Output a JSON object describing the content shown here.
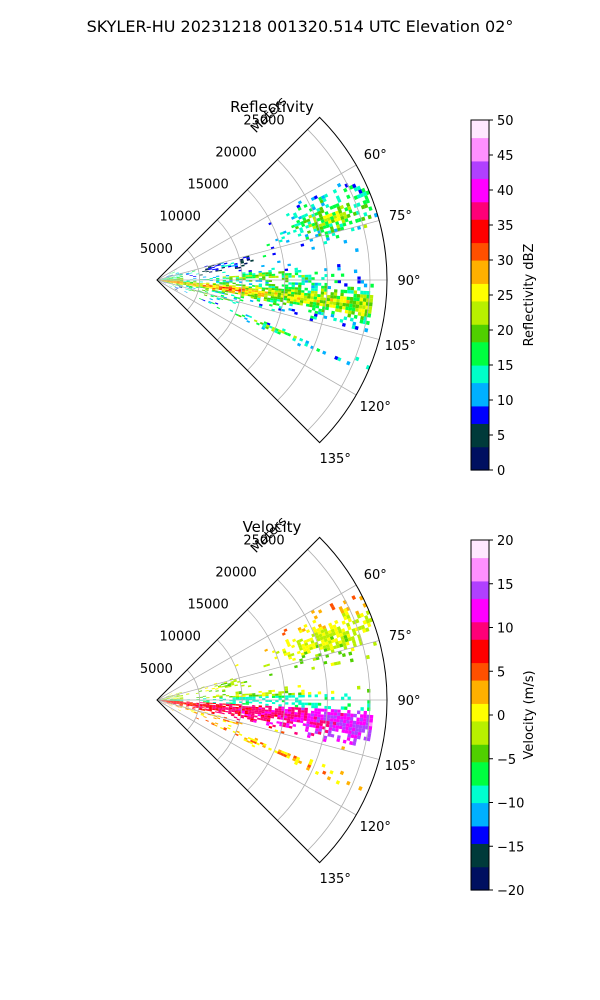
{
  "suptitle": "SKYLER-HU  20231218  001320.514 UTC Elevation 02°",
  "chart_data": [
    {
      "type": "heatmap",
      "projection": "polar-sector",
      "title": "Reflectivity",
      "range_label": "Meters",
      "range_ticks": [
        5000,
        10000,
        15000,
        20000,
        25000
      ],
      "range_max": 27000,
      "azimuth_ticks": [
        "60°",
        "75°",
        "90°",
        "105°",
        "120°",
        "135°"
      ],
      "azimuth_values": [
        60,
        75,
        90,
        105,
        120,
        135
      ],
      "azimuth_range": [
        45,
        135
      ],
      "grid": true,
      "colorbar": {
        "label": "Reflectivity dBZ",
        "ticks": [
          0,
          5,
          10,
          15,
          20,
          25,
          30,
          35,
          40,
          45,
          50
        ],
        "range": [
          0,
          50
        ],
        "colors": [
          "#001060",
          "#003a3a",
          "#0000ff",
          "#00b0ff",
          "#00ffc8",
          "#00ff40",
          "#50d000",
          "#b8f000",
          "#ffff00",
          "#ffb000",
          "#ff5000",
          "#ff0000",
          "#ff0078",
          "#ff00ff",
          "#b040ff",
          "#ff90ff",
          "#ffe8ff"
        ]
      }
    },
    {
      "type": "heatmap",
      "projection": "polar-sector",
      "title": "Velocity",
      "range_label": "Meters",
      "range_ticks": [
        5000,
        10000,
        15000,
        20000,
        25000
      ],
      "range_max": 27000,
      "azimuth_ticks": [
        "60°",
        "75°",
        "90°",
        "105°",
        "120°",
        "135°"
      ],
      "azimuth_values": [
        60,
        75,
        90,
        105,
        120,
        135
      ],
      "azimuth_range": [
        45,
        135
      ],
      "grid": true,
      "colorbar": {
        "label": "Velocity (m/s)",
        "ticks": [
          -20,
          -15,
          -10,
          -5,
          0,
          5,
          10,
          15,
          20
        ],
        "range": [
          -20,
          20
        ],
        "colors": [
          "#001060",
          "#003a3a",
          "#0000ff",
          "#00b0ff",
          "#00ffd0",
          "#00ff40",
          "#50d000",
          "#b8f000",
          "#ffff00",
          "#ffb000",
          "#ff5000",
          "#ff0000",
          "#ff0078",
          "#ff00ff",
          "#b040ff",
          "#ff90ff",
          "#ffe8ff"
        ]
      }
    }
  ]
}
